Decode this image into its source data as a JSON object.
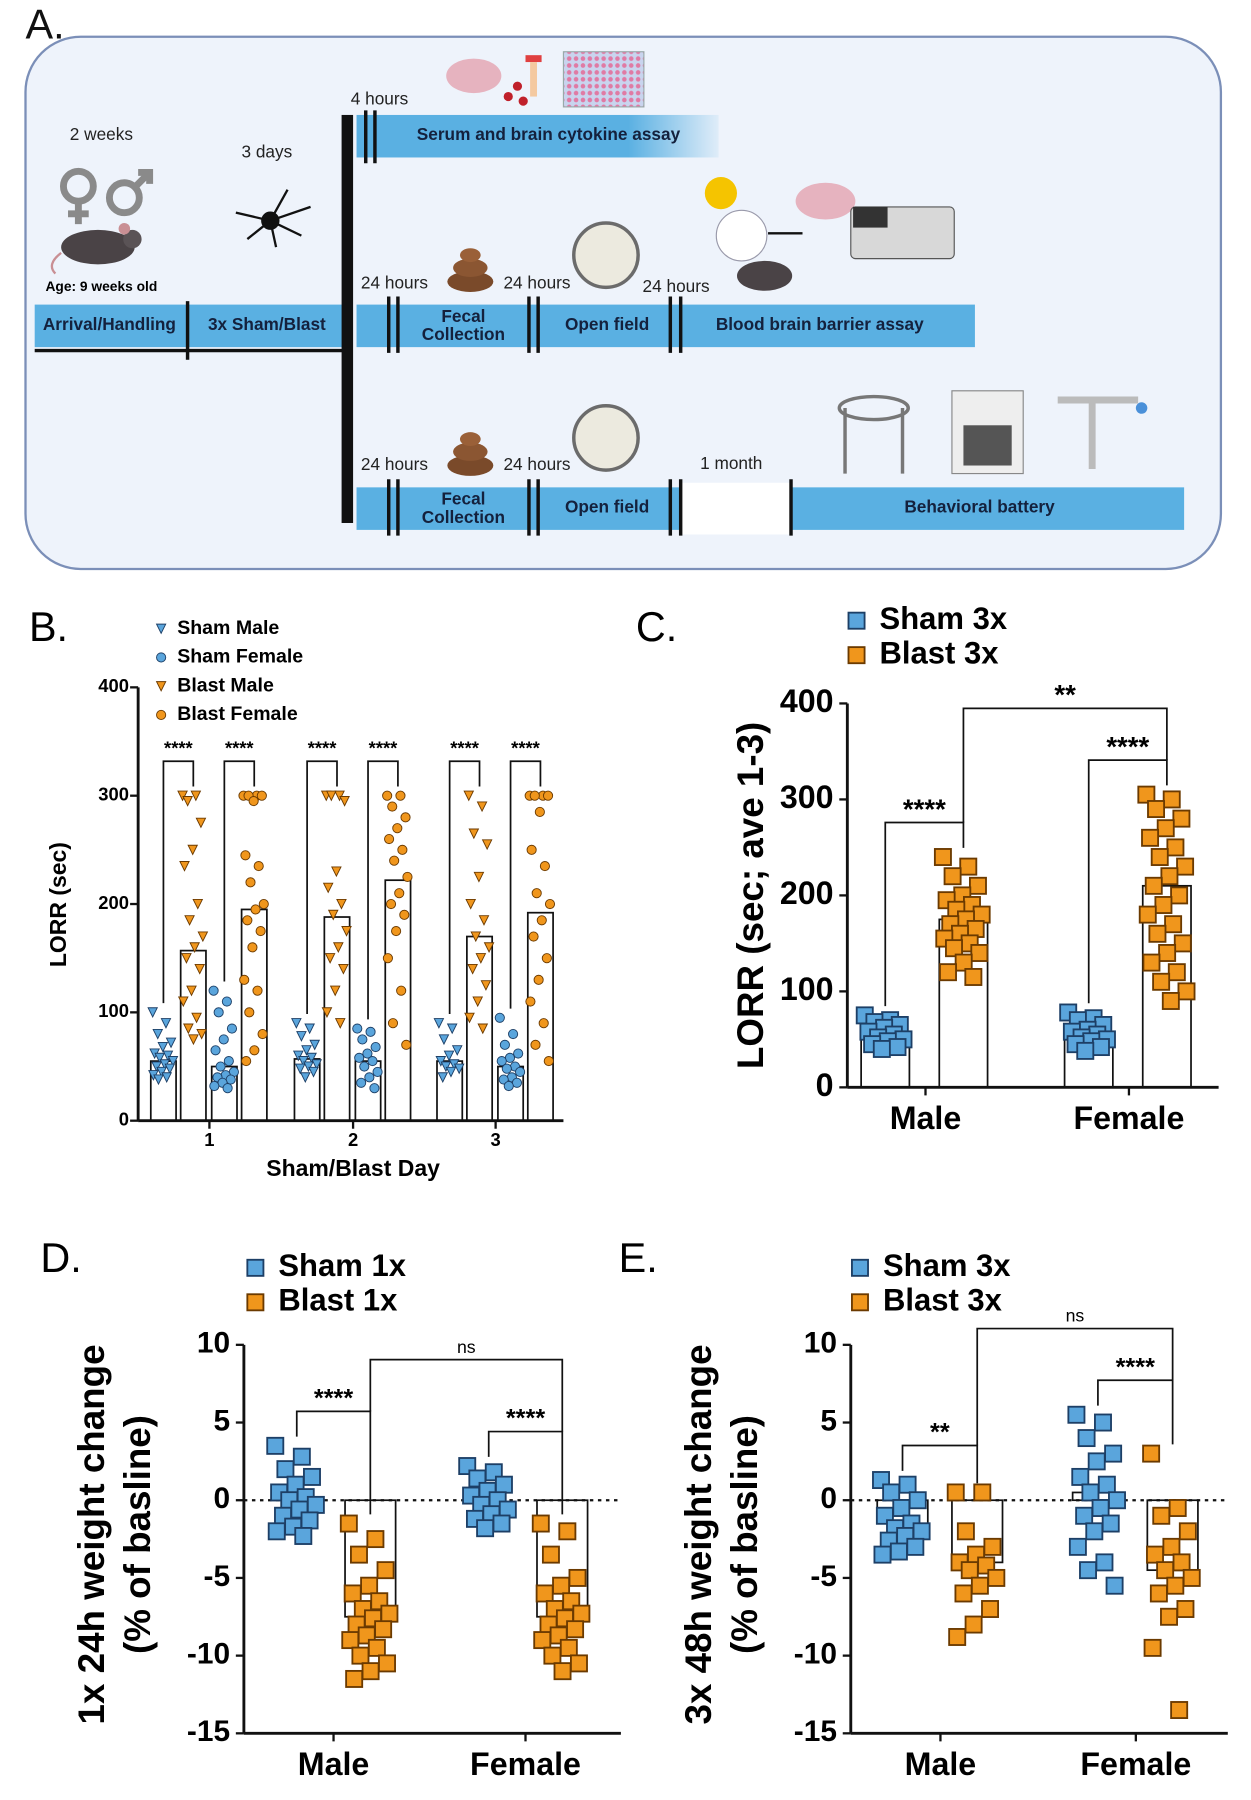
{
  "panel_a": {
    "label": "A.",
    "arrival_period": "2 weeks",
    "blast_period": "3 days",
    "age": "Age: 9 weeks old",
    "stages": [
      "Arrival/Handling",
      "3x Sham/Blast"
    ],
    "branch_1": {
      "delay": "4 hours",
      "label": "Serum and brain cytokine assay"
    },
    "branch_2": {
      "steps": [
        {
          "delay": "24 hours",
          "label": [
            "Fecal",
            "Collection"
          ]
        },
        {
          "delay": "24 hours",
          "label": [
            "Open field"
          ]
        },
        {
          "delay": "24 hours",
          "label": [
            "Blood brain barrier assay"
          ]
        }
      ]
    },
    "branch_3": {
      "steps": [
        {
          "delay": "24 hours",
          "label": [
            "Fecal",
            "Collection"
          ]
        },
        {
          "delay": "24 hours",
          "label": [
            "Open field"
          ]
        },
        {
          "delay": "1 month",
          "label": [
            "Behavioral battery"
          ]
        }
      ]
    }
  },
  "chart_data": [
    {
      "type": "bar",
      "panel": "B.",
      "xlabel": "Sham/Blast Day",
      "ylabel": "LORR (sec)",
      "categories": [
        "1",
        "2",
        "3"
      ],
      "ylim": [
        0,
        400
      ],
      "yticks": [
        0,
        100,
        200,
        300,
        400
      ],
      "series": [
        {
          "name": "Sham Male",
          "color": "#5aa5dc",
          "marker": "triangle-down",
          "values": [
            55,
            57,
            55
          ],
          "points": [
            [
              100,
              90,
              80,
              72,
              68,
              62,
              60,
              58,
              55,
              52,
              50,
              48,
              45,
              42,
              40,
              38
            ],
            [
              90,
              85,
              78,
              70,
              65,
              60,
              58,
              55,
              52,
              50,
              48,
              45,
              40
            ],
            [
              90,
              85,
              75,
              65,
              60,
              55,
              52,
              50,
              48,
              45,
              40
            ]
          ]
        },
        {
          "name": "Sham Female",
          "color": "#5aa5dc",
          "marker": "circle",
          "values": [
            50,
            55,
            50
          ],
          "points": [
            [
              120,
              110,
              100,
              85,
              75,
              65,
              55,
              50,
              45,
              42,
              40,
              38,
              35,
              32,
              30
            ],
            [
              85,
              82,
              75,
              68,
              62,
              58,
              55,
              50,
              45,
              40,
              35,
              30
            ],
            [
              95,
              80,
              70,
              62,
              58,
              55,
              50,
              48,
              45,
              40,
              38,
              35,
              32
            ]
          ]
        },
        {
          "name": "Blast Male",
          "color": "#f0961c",
          "marker": "triangle-down",
          "values": [
            157,
            188,
            170
          ],
          "points": [
            [
              300,
              300,
              295,
              275,
              250,
              235,
              200,
              185,
              170,
              160,
              150,
              140,
              120,
              110,
              95,
              85,
              80,
              75
            ],
            [
              300,
              300,
              300,
              295,
              230,
              215,
              200,
              190,
              175,
              160,
              150,
              140,
              120,
              100,
              90
            ],
            [
              300,
              290,
              265,
              255,
              225,
              200,
              185,
              170,
              160,
              150,
              140,
              125,
              110,
              95,
              85
            ]
          ]
        },
        {
          "name": "Blast Female",
          "color": "#f0961c",
          "marker": "circle",
          "values": [
            195,
            222,
            192
          ],
          "points": [
            [
              300,
              300,
              300,
              300,
              295,
              245,
              235,
              220,
              200,
              195,
              185,
              175,
              160,
              130,
              120,
              100,
              80,
              65,
              55
            ],
            [
              300,
              300,
              290,
              280,
              270,
              260,
              250,
              240,
              225,
              210,
              200,
              190,
              175,
              150,
              120,
              90,
              70
            ],
            [
              300,
              300,
              300,
              300,
              285,
              250,
              235,
              210,
              200,
              185,
              170,
              150,
              130,
              110,
              90,
              70,
              55
            ]
          ]
        }
      ],
      "brackets": [
        {
          "label": "****",
          "from": [
            0,
            0
          ],
          "to": [
            0,
            2
          ]
        },
        {
          "label": "****",
          "from": [
            0,
            1
          ],
          "to": [
            0,
            3
          ]
        },
        {
          "label": "****",
          "from": [
            1,
            0
          ],
          "to": [
            1,
            2
          ]
        },
        {
          "label": "****",
          "from": [
            1,
            1
          ],
          "to": [
            1,
            3
          ]
        },
        {
          "label": "****",
          "from": [
            2,
            0
          ],
          "to": [
            2,
            2
          ]
        },
        {
          "label": "****",
          "from": [
            2,
            1
          ],
          "to": [
            2,
            3
          ]
        }
      ]
    },
    {
      "type": "bar",
      "panel": "C.",
      "ylabel": "LORR (sec; ave 1-3)",
      "categories": [
        "Male",
        "Female"
      ],
      "ylim": [
        0,
        400
      ],
      "yticks": [
        0,
        100,
        200,
        300,
        400
      ],
      "series": [
        {
          "name": "Sham 3x",
          "color": "#5aa5dc",
          "marker": "square",
          "values": [
            55,
            55
          ],
          "points": [
            [
              75,
              70,
              68,
              65,
              62,
              58,
              55,
              52,
              50,
              48,
              45,
              42,
              40
            ],
            [
              78,
              72,
              70,
              65,
              60,
              58,
              55,
              52,
              50,
              48,
              45,
              42,
              38
            ]
          ]
        },
        {
          "name": "Blast 3x",
          "color": "#f0961c",
          "marker": "square",
          "values": [
            175,
            210
          ],
          "points": [
            [
              240,
              230,
              220,
              210,
              200,
              195,
              190,
              185,
              180,
              175,
              170,
              165,
              160,
              155,
              150,
              145,
              140,
              130,
              120,
              115
            ],
            [
              305,
              300,
              290,
              280,
              270,
              260,
              250,
              240,
              230,
              220,
              210,
              200,
              190,
              180,
              170,
              160,
              150,
              140,
              130,
              120,
              110,
              100,
              90
            ]
          ]
        }
      ],
      "brackets": [
        {
          "label": "****",
          "from": [
            0,
            0
          ],
          "to": [
            0,
            1
          ]
        },
        {
          "label": "****",
          "from": [
            1,
            0
          ],
          "to": [
            1,
            1
          ]
        },
        {
          "label": "**",
          "from": [
            0,
            1
          ],
          "to": [
            1,
            1
          ]
        }
      ]
    },
    {
      "type": "bar",
      "panel": "D.",
      "ylabel": [
        "1x 24h weight change",
        "(% of basline)"
      ],
      "categories": [
        "Male",
        "Female"
      ],
      "ylim": [
        -15,
        10
      ],
      "yticks": [
        10,
        5,
        0,
        -5,
        -10,
        -15
      ],
      "zero_line": true,
      "series": [
        {
          "name": "Sham 1x",
          "color": "#5aa5dc",
          "marker": "square",
          "values": [
            0,
            0
          ],
          "points": [
            [
              3.5,
              2.8,
              2,
              1.5,
              1,
              0.5,
              0.2,
              0,
              -0.3,
              -0.6,
              -1,
              -1.3,
              -1.7,
              -2,
              -2.3
            ],
            [
              2.2,
              1.8,
              1.4,
              1,
              0.6,
              0.3,
              0,
              -0.3,
              -0.6,
              -0.9,
              -1.2,
              -1.5,
              -1.8
            ]
          ]
        },
        {
          "name": "Blast 1x",
          "color": "#f0961c",
          "marker": "square",
          "values": [
            -7.5,
            -7.5
          ],
          "points": [
            [
              -1.5,
              -2.5,
              -3.5,
              -4.5,
              -5.5,
              -6,
              -6.5,
              -7,
              -7.3,
              -7.6,
              -8,
              -8.3,
              -8.7,
              -9,
              -9.5,
              -10,
              -10.5,
              -11,
              -11.5
            ],
            [
              -1.5,
              -2,
              -3.5,
              -5,
              -5.5,
              -6,
              -6.5,
              -7,
              -7.3,
              -7.6,
              -8,
              -8.3,
              -8.7,
              -9,
              -9.5,
              -10,
              -10.5,
              -11
            ]
          ]
        }
      ],
      "brackets": [
        {
          "label": "****",
          "from": [
            0,
            0
          ],
          "to": [
            0,
            1
          ]
        },
        {
          "label": "****",
          "from": [
            1,
            0
          ],
          "to": [
            1,
            1
          ]
        },
        {
          "label": "ns",
          "from": [
            0,
            1
          ],
          "to": [
            1,
            1
          ]
        }
      ]
    },
    {
      "type": "bar",
      "panel": "E.",
      "ylabel": [
        "3x 48h weight change",
        "(% of basline)"
      ],
      "categories": [
        "Male",
        "Female"
      ],
      "ylim": [
        -15,
        10
      ],
      "yticks": [
        10,
        5,
        0,
        -5,
        -10,
        -15
      ],
      "zero_line": true,
      "series": [
        {
          "name": "Sham 3x",
          "color": "#5aa5dc",
          "marker": "square",
          "values": [
            -1.5,
            0.5
          ],
          "points": [
            [
              1.3,
              1,
              0.5,
              0,
              -0.5,
              -1,
              -1.5,
              -1.8,
              -2,
              -2.3,
              -2.6,
              -3,
              -3.3,
              -3.5
            ],
            [
              5.5,
              5,
              4,
              3,
              2.5,
              1.5,
              1,
              0.5,
              0,
              -0.5,
              -1,
              -1.5,
              -2,
              -3,
              -4,
              -4.5,
              -5.5
            ]
          ]
        },
        {
          "name": "Blast 3x",
          "color": "#f0961c",
          "marker": "square",
          "values": [
            -4,
            -4.5
          ],
          "points": [
            [
              0.5,
              0.5,
              -2,
              -3,
              -3.5,
              -4,
              -4.2,
              -4.5,
              -5,
              -5.5,
              -6,
              -7,
              -8,
              -8.8
            ],
            [
              3,
              -0.5,
              -1,
              -2,
              -3,
              -3.5,
              -4,
              -4.5,
              -5,
              -5.5,
              -6,
              -7,
              -7.5,
              -9.5,
              -13.5
            ]
          ]
        }
      ],
      "brackets": [
        {
          "label": "**",
          "from": [
            0,
            0
          ],
          "to": [
            0,
            1
          ]
        },
        {
          "label": "****",
          "from": [
            1,
            0
          ],
          "to": [
            1,
            1
          ]
        },
        {
          "label": "ns",
          "from": [
            0,
            1
          ],
          "to": [
            1,
            1
          ]
        }
      ]
    }
  ]
}
